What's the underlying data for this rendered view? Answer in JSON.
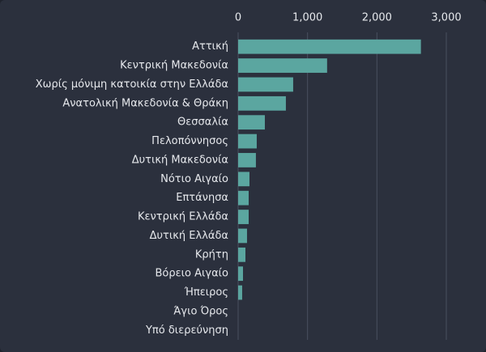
{
  "chart_data": {
    "type": "hbar",
    "categories": [
      "Αττική",
      "Κεντρική Μακεδονία",
      "Χωρίς μόνιμη κατοικία στην Ελλάδα",
      "Ανατολική Μακεδονία & Θράκη",
      "Θεσσαλία",
      "Πελοπόννησος",
      "Δυτική Μακεδονία",
      "Νότιο Αιγαίο",
      "Επτάνησα",
      "Κεντρική Ελλάδα",
      "Δυτική Ελλάδα",
      "Κρήτη",
      "Βόρειο Αιγαίο",
      "Ήπειρος",
      "Άγιο Όρος",
      "Υπό διερεύνηση"
    ],
    "values": [
      2634,
      1282,
      793,
      688,
      385,
      268,
      256,
      163,
      152,
      152,
      128,
      105,
      70,
      58,
      0,
      0
    ],
    "color": "#5ba6a0",
    "xlim": [
      0,
      3000
    ],
    "xticks": [
      0,
      {
        "value": 1000,
        "label": "1,000"
      },
      {
        "value": 2000,
        "label": "2,000"
      },
      {
        "value": 3000,
        "label": "3,000"
      }
    ],
    "grid": true
  }
}
